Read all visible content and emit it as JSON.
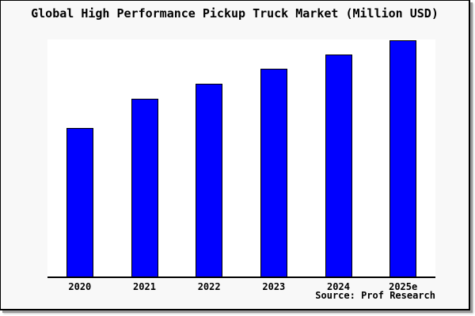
{
  "title": "Global High Performance Pickup Truck Market (Million USD)",
  "source_label": "Source: Prof Research",
  "colors": {
    "bar_fill": "#0000ff",
    "bar_border": "#000000",
    "frame_background": "#f8f8f8",
    "plot_background": "#ffffff",
    "axis": "#000000",
    "text": "#000000"
  },
  "chart_data": {
    "type": "bar",
    "title": "Global High Performance Pickup Truck Market (Million USD)",
    "categories": [
      "2020",
      "2021",
      "2022",
      "2023",
      "2024",
      "2025e"
    ],
    "values": [
      188,
      225,
      244,
      263,
      281,
      299
    ],
    "values_note": "y-axis has no tick labels; values are relative heights estimated from pixels",
    "xlabel": "",
    "ylabel": "",
    "ylim": [
      0,
      300
    ],
    "grid": false,
    "legend": false,
    "y_axis_labeled": false,
    "source": "Source: Prof Research"
  }
}
